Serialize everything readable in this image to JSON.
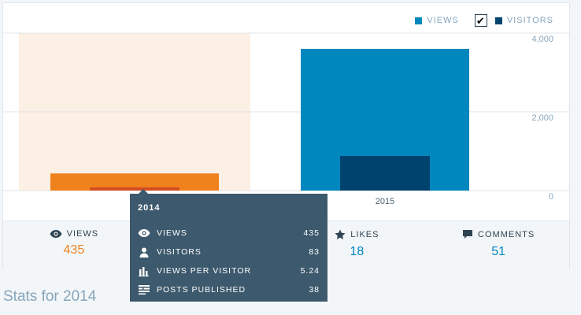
{
  "legend": {
    "views_label": "VIEWS",
    "visitors_label": "VISITORS",
    "visitors_checked": true
  },
  "colors": {
    "views": "#0087be",
    "visitors": "#00436e",
    "selected_views": "#f0821e",
    "selected_visitors": "#d54e21",
    "selected_highlight": "#fcefe3"
  },
  "summary": {
    "views": {
      "label": "VIEWS",
      "value": "435",
      "icon": "eye-icon"
    },
    "likes": {
      "label": "LIKES",
      "value": "18",
      "icon": "star-icon"
    },
    "comments": {
      "label": "COMMENTS",
      "value": "51",
      "icon": "speech-bubble-icon"
    }
  },
  "tooltip": {
    "title": "2014",
    "rows": [
      {
        "label": "VIEWS",
        "value": "435",
        "icon": "eye-icon"
      },
      {
        "label": "VISITORS",
        "value": "83",
        "icon": "person-icon"
      },
      {
        "label": "VIEWS PER VISITOR",
        "value": "5.24",
        "icon": "bar-chart-icon"
      },
      {
        "label": "POSTS PUBLISHED",
        "value": "38",
        "icon": "document-lines-icon"
      }
    ]
  },
  "page_title": "Stats for 2014",
  "chart_data": {
    "type": "bar",
    "categories": [
      "2014",
      "2015"
    ],
    "x_tick_labels": [
      "",
      "2015"
    ],
    "series": [
      {
        "name": "VIEWS",
        "values": [
          435,
          3600
        ]
      },
      {
        "name": "VISITORS",
        "values": [
          83,
          880
        ]
      }
    ],
    "ylim": [
      0,
      4000
    ],
    "y_ticks": [
      0,
      2000,
      4000
    ],
    "y_tick_labels": [
      "0",
      "2,000",
      "4,000"
    ],
    "selected_category": "2014",
    "grid": true
  }
}
